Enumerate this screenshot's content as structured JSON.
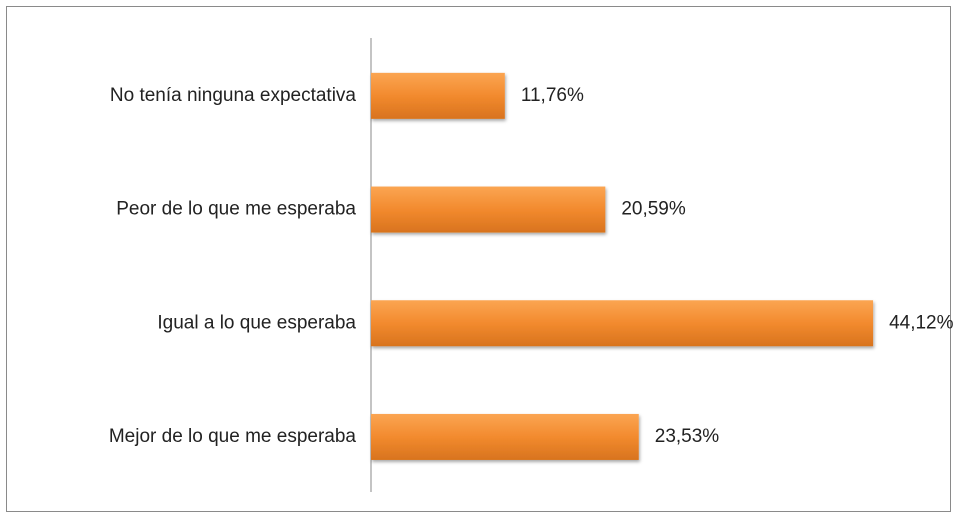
{
  "chart_data": {
    "type": "bar",
    "orientation": "horizontal",
    "categories": [
      "No tenía ninguna expectativa",
      "Peor de lo que me esperaba",
      "Igual a lo que esperaba",
      "Mejor de lo que me esperaba"
    ],
    "values": [
      11.76,
      20.59,
      44.12,
      23.53
    ],
    "value_labels": [
      "11,76%",
      "20,59%",
      "44,12%",
      "23,53%"
    ],
    "color": "#f28a2e"
  }
}
